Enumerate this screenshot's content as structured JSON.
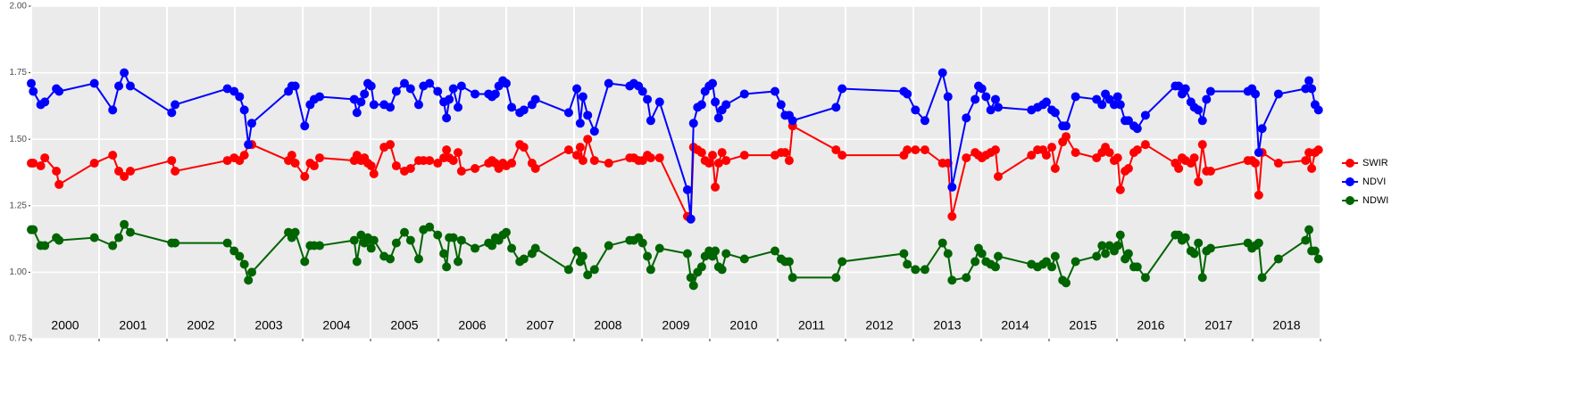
{
  "chart_data": {
    "type": "line",
    "x": [
      2000.0,
      2000.03,
      2000.14,
      2000.2,
      2000.37,
      2000.41,
      2000.93,
      2001.2,
      2001.29,
      2001.37,
      2001.46,
      2002.07,
      2002.12,
      2002.89,
      2002.99,
      2003.07,
      2003.14,
      2003.2,
      2003.25,
      2003.79,
      2003.84,
      2003.89,
      2004.03,
      2004.11,
      2004.17,
      2004.25,
      2004.76,
      2004.8,
      2004.86,
      2004.91,
      2004.96,
      2005.01,
      2005.05,
      2005.2,
      2005.29,
      2005.38,
      2005.5,
      2005.59,
      2005.71,
      2005.78,
      2005.87,
      2005.99,
      2006.08,
      2006.12,
      2006.16,
      2006.22,
      2006.29,
      2006.34,
      2006.54,
      2006.74,
      2006.79,
      2006.84,
      2006.89,
      2006.95,
      2007.0,
      2007.08,
      2007.2,
      2007.26,
      2007.38,
      2007.43,
      2007.92,
      2008.04,
      2008.09,
      2008.13,
      2008.2,
      2008.3,
      2008.51,
      2008.82,
      2008.88,
      2008.95,
      2009.01,
      2009.08,
      2009.13,
      2009.26,
      2009.67,
      2009.72,
      2009.76,
      2009.82,
      2009.88,
      2009.93,
      2009.99,
      2010.04,
      2010.08,
      2010.13,
      2010.18,
      2010.24,
      2010.51,
      2010.96,
      2011.05,
      2011.11,
      2011.17,
      2011.22,
      2011.86,
      2011.95,
      2012.86,
      2012.91,
      2013.03,
      2013.17,
      2013.43,
      2013.51,
      2013.57,
      2013.78,
      2013.91,
      2013.96,
      2014.01,
      2014.07,
      2014.14,
      2014.21,
      2014.25,
      2014.74,
      2014.83,
      2014.91,
      2014.96,
      2015.04,
      2015.09,
      2015.2,
      2015.25,
      2015.39,
      2015.7,
      2015.78,
      2015.83,
      2015.89,
      2015.96,
      2016.01,
      2016.05,
      2016.12,
      2016.17,
      2016.25,
      2016.3,
      2016.42,
      2016.86,
      2016.91,
      2016.96,
      2017.01,
      2017.09,
      2017.14,
      2017.2,
      2017.26,
      2017.32,
      2017.38,
      2017.93,
      2017.99,
      2018.04,
      2018.09,
      2018.14,
      2018.38,
      2018.78,
      2018.83,
      2018.87,
      2018.92,
      2018.97
    ],
    "series": [
      {
        "name": "SWIR",
        "color": "#ff0000",
        "values": [
          1.41,
          1.41,
          1.4,
          1.43,
          1.38,
          1.33,
          1.41,
          1.44,
          1.38,
          1.36,
          1.38,
          1.42,
          1.38,
          1.42,
          1.43,
          1.42,
          1.44,
          1.48,
          1.48,
          1.42,
          1.44,
          1.41,
          1.36,
          1.41,
          1.4,
          1.43,
          1.42,
          1.44,
          1.42,
          1.43,
          1.41,
          1.4,
          1.37,
          1.47,
          1.48,
          1.4,
          1.38,
          1.39,
          1.42,
          1.42,
          1.42,
          1.41,
          1.43,
          1.46,
          1.43,
          1.42,
          1.45,
          1.38,
          1.39,
          1.41,
          1.42,
          1.41,
          1.39,
          1.41,
          1.4,
          1.41,
          1.48,
          1.47,
          1.41,
          1.39,
          1.46,
          1.44,
          1.47,
          1.42,
          1.5,
          1.42,
          1.41,
          1.43,
          1.43,
          1.42,
          1.42,
          1.44,
          1.43,
          1.43,
          1.21,
          1.2,
          1.47,
          1.46,
          1.45,
          1.42,
          1.41,
          1.44,
          1.32,
          1.41,
          1.45,
          1.42,
          1.44,
          1.44,
          1.45,
          1.45,
          1.42,
          1.55,
          1.46,
          1.44,
          1.44,
          1.46,
          1.46,
          1.46,
          1.41,
          1.41,
          1.21,
          1.43,
          1.45,
          1.44,
          1.43,
          1.44,
          1.45,
          1.46,
          1.36,
          1.44,
          1.46,
          1.46,
          1.44,
          1.47,
          1.39,
          1.49,
          1.51,
          1.45,
          1.43,
          1.45,
          1.47,
          1.45,
          1.42,
          1.43,
          1.31,
          1.38,
          1.39,
          1.45,
          1.46,
          1.48,
          1.41,
          1.39,
          1.43,
          1.42,
          1.41,
          1.43,
          1.34,
          1.48,
          1.38,
          1.38,
          1.42,
          1.42,
          1.41,
          1.29,
          1.45,
          1.41,
          1.42,
          1.45,
          1.39,
          1.45,
          1.46
        ]
      },
      {
        "name": "NDVI",
        "color": "#0000ff",
        "values": [
          1.71,
          1.68,
          1.63,
          1.64,
          1.69,
          1.68,
          1.71,
          1.61,
          1.7,
          1.75,
          1.7,
          1.6,
          1.63,
          1.69,
          1.68,
          1.66,
          1.61,
          1.48,
          1.56,
          1.68,
          1.7,
          1.7,
          1.55,
          1.63,
          1.65,
          1.66,
          1.65,
          1.6,
          1.64,
          1.67,
          1.71,
          1.7,
          1.63,
          1.63,
          1.62,
          1.68,
          1.71,
          1.69,
          1.63,
          1.7,
          1.71,
          1.68,
          1.64,
          1.58,
          1.65,
          1.69,
          1.62,
          1.7,
          1.67,
          1.67,
          1.66,
          1.67,
          1.7,
          1.72,
          1.71,
          1.62,
          1.6,
          1.61,
          1.63,
          1.65,
          1.6,
          1.69,
          1.56,
          1.66,
          1.59,
          1.53,
          1.71,
          1.7,
          1.71,
          1.7,
          1.68,
          1.65,
          1.57,
          1.64,
          1.31,
          1.2,
          1.56,
          1.62,
          1.63,
          1.68,
          1.7,
          1.71,
          1.64,
          1.58,
          1.61,
          1.63,
          1.67,
          1.68,
          1.63,
          1.59,
          1.59,
          1.57,
          1.62,
          1.69,
          1.68,
          1.67,
          1.61,
          1.57,
          1.75,
          1.66,
          1.32,
          1.58,
          1.65,
          1.7,
          1.69,
          1.66,
          1.61,
          1.65,
          1.62,
          1.61,
          1.62,
          1.63,
          1.64,
          1.61,
          1.6,
          1.55,
          1.55,
          1.66,
          1.65,
          1.63,
          1.67,
          1.65,
          1.63,
          1.66,
          1.63,
          1.57,
          1.57,
          1.55,
          1.54,
          1.59,
          1.7,
          1.7,
          1.67,
          1.69,
          1.64,
          1.62,
          1.61,
          1.57,
          1.65,
          1.68,
          1.68,
          1.69,
          1.67,
          1.45,
          1.54,
          1.67,
          1.69,
          1.72,
          1.69,
          1.63,
          1.61
        ]
      },
      {
        "name": "NDWI",
        "color": "#006400",
        "values": [
          1.16,
          1.16,
          1.1,
          1.1,
          1.13,
          1.12,
          1.13,
          1.1,
          1.13,
          1.18,
          1.15,
          1.11,
          1.11,
          1.11,
          1.08,
          1.06,
          1.03,
          0.97,
          1.0,
          1.15,
          1.13,
          1.15,
          1.04,
          1.1,
          1.1,
          1.1,
          1.12,
          1.04,
          1.14,
          1.11,
          1.13,
          1.09,
          1.12,
          1.06,
          1.05,
          1.11,
          1.15,
          1.12,
          1.05,
          1.16,
          1.17,
          1.14,
          1.07,
          1.02,
          1.13,
          1.13,
          1.04,
          1.12,
          1.09,
          1.11,
          1.1,
          1.13,
          1.12,
          1.14,
          1.15,
          1.09,
          1.04,
          1.05,
          1.07,
          1.09,
          1.01,
          1.08,
          1.04,
          1.06,
          0.99,
          1.01,
          1.1,
          1.12,
          1.12,
          1.13,
          1.11,
          1.06,
          1.01,
          1.09,
          1.07,
          0.98,
          0.95,
          1.0,
          1.02,
          1.06,
          1.08,
          1.06,
          1.08,
          1.02,
          1.01,
          1.07,
          1.05,
          1.08,
          1.05,
          1.04,
          1.04,
          0.98,
          0.98,
          1.04,
          1.07,
          1.03,
          1.01,
          1.01,
          1.11,
          1.07,
          0.97,
          0.98,
          1.04,
          1.09,
          1.07,
          1.04,
          1.03,
          1.02,
          1.06,
          1.03,
          1.02,
          1.03,
          1.04,
          1.02,
          1.06,
          0.97,
          0.96,
          1.04,
          1.06,
          1.1,
          1.07,
          1.1,
          1.08,
          1.1,
          1.14,
          1.05,
          1.07,
          1.02,
          1.02,
          0.98,
          1.14,
          1.14,
          1.12,
          1.13,
          1.08,
          1.07,
          1.11,
          0.98,
          1.08,
          1.09,
          1.11,
          1.09,
          1.1,
          1.11,
          0.98,
          1.05,
          1.12,
          1.16,
          1.08,
          1.08,
          1.05
        ]
      }
    ],
    "categories": [
      "2000",
      "2001",
      "2002",
      "2003",
      "2004",
      "2005",
      "2006",
      "2007",
      "2008",
      "2009",
      "2010",
      "2011",
      "2012",
      "2013",
      "2014",
      "2015",
      "2016",
      "2017",
      "2018"
    ],
    "xlim": [
      2000,
      2019
    ],
    "xticks": [
      2000,
      2001,
      2002,
      2003,
      2004,
      2005,
      2006,
      2007,
      2008,
      2009,
      2010,
      2011,
      2012,
      2013,
      2014,
      2015,
      2016,
      2017,
      2018,
      2019
    ],
    "ylim": [
      0.75,
      2
    ],
    "yticks": [
      0.75,
      {
        "value": 1,
        "label": "1.00"
      },
      1.25,
      {
        "value": 1.5,
        "label": "1.50"
      },
      1.75,
      {
        "value": 2,
        "label": "2.00"
      }
    ],
    "grid": true,
    "legend": "right"
  }
}
